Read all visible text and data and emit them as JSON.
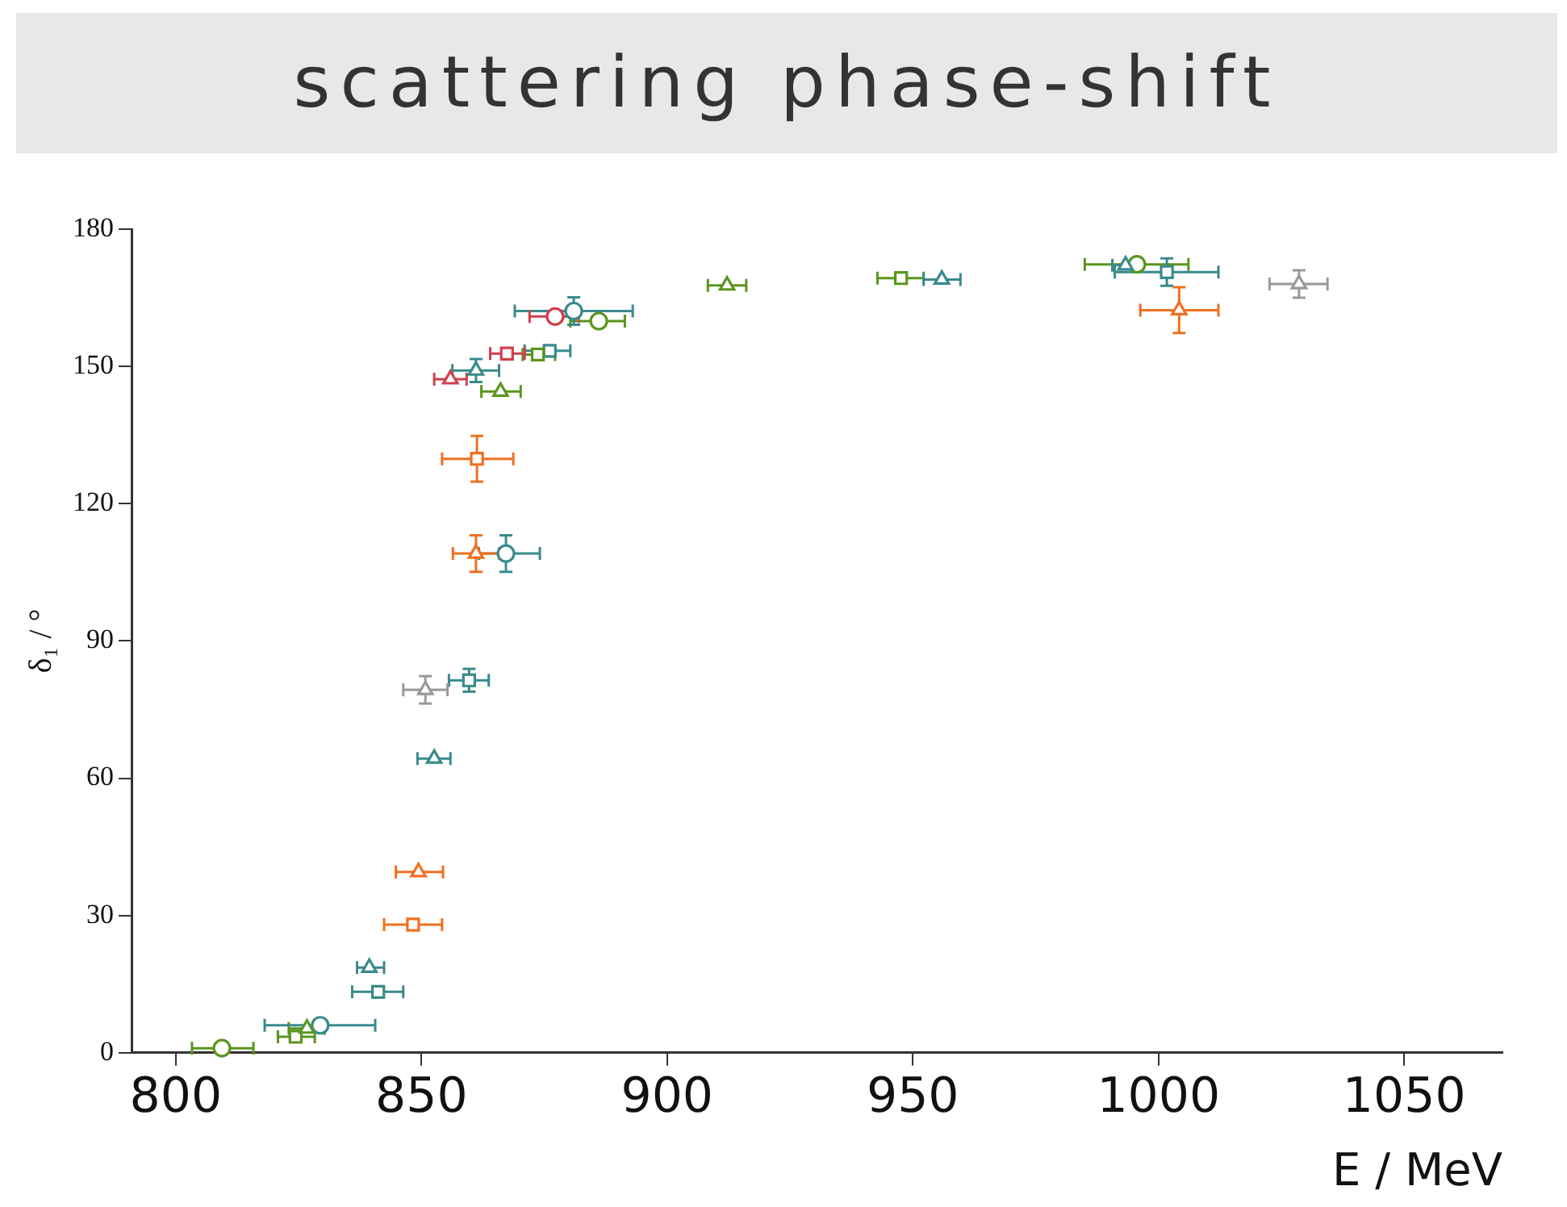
{
  "chart_data": {
    "type": "scatter",
    "title": "scattering phase-shift",
    "xlabel": "E / MeV",
    "ylabel": "δ₁ / °",
    "xlim": [
      791,
      1070
    ],
    "xticks": [
      800,
      850,
      900,
      950,
      1000,
      1050
    ],
    "ylim": [
      0,
      180
    ],
    "yticks": [
      0,
      30,
      60,
      90,
      120,
      150,
      180
    ],
    "grid": false,
    "legend": false,
    "series": [
      {
        "color": "#5a961e",
        "marker": "circle",
        "x": [
          809.4,
          886.1,
          995.6
        ],
        "values": [
          1,
          159.9,
          172.3
        ],
        "xerrors": [
          [
            803.3,
            815.8
          ],
          [
            880.3,
            891.4
          ],
          [
            985,
            1006.1
          ]
        ]
      },
      {
        "color": "#5a961e",
        "marker": "square",
        "x": [
          824.4,
          873.7,
          947.6
        ],
        "values": [
          3.5,
          152.6,
          169.3
        ],
        "xerrors": [
          [
            820.8,
            828.3
          ],
          [
            870.6,
            877.2
          ],
          [
            942.8,
            952.2
          ]
        ]
      },
      {
        "color": "#5a961e",
        "marker": "triangle",
        "x": [
          826.7,
          866.1,
          912.2
        ],
        "values": [
          5.3,
          144.5,
          167.7
        ],
        "xerrors": [
          [
            823,
            830.3
          ],
          [
            862.2,
            870.2
          ],
          [
            908.3,
            916.1
          ]
        ]
      },
      {
        "color": "#3a8a8c",
        "marker": "circle",
        "x": [
          829.4,
          867.2,
          881
        ],
        "values": [
          6,
          109.1,
          162.1
        ],
        "xerrors": [
          [
            818.1,
            840.6
          ],
          [
            861.7,
            874.1
          ],
          [
            869,
            893
          ]
        ],
        "errors": [
          null,
          4,
          3
        ]
      },
      {
        "color": "#3a8a8c",
        "marker": "square",
        "x": [
          841.2,
          859.7,
          876.1,
          1001.7
        ],
        "values": [
          13.3,
          81.4,
          153.4,
          170.6
        ],
        "xerrors": [
          [
            835.9,
            846.3
          ],
          [
            855.6,
            863.7
          ],
          [
            871,
            880.3
          ],
          [
            991.1,
            1012.2
          ]
        ],
        "errors": [
          null,
          2.5,
          null,
          3
        ]
      },
      {
        "color": "#3a8a8c",
        "marker": "triangle",
        "x": [
          839.4,
          852.6,
          861.1,
          955.9,
          993.3
        ],
        "values": [
          18.6,
          64.3,
          149.1,
          169,
          172.1
        ],
        "xerrors": [
          [
            836.9,
            842.4
          ],
          [
            849.2,
            855.9
          ],
          [
            856.3,
            865.8
          ],
          [
            952.2,
            959.7
          ],
          [
            990.6,
            996.7
          ]
        ],
        "errors": [
          null,
          null,
          2.5,
          null,
          null
        ]
      },
      {
        "color": "#f07020",
        "marker": "square",
        "x": [
          848.3,
          861.3
        ],
        "values": [
          28,
          129.8
        ],
        "xerrors": [
          [
            842.4,
            854.2
          ],
          [
            854.2,
            868.7
          ]
        ],
        "errors": [
          null,
          5
        ]
      },
      {
        "color": "#f07020",
        "marker": "triangle",
        "x": [
          849.4,
          861.1,
          1004.2
        ],
        "values": [
          39.5,
          109.1,
          162.3
        ],
        "xerrors": [
          [
            844.8,
            854.4
          ],
          [
            856.4,
            865.8
          ],
          [
            996.3,
            1012.2
          ]
        ],
        "errors": [
          null,
          4,
          5
        ]
      },
      {
        "color": "#d0404e",
        "marker": "circle",
        "x": [
          877.2
        ],
        "values": [
          160.9
        ],
        "xerrors": [
          [
            872,
            882
          ]
        ]
      },
      {
        "color": "#d0404e",
        "marker": "square",
        "x": [
          867.4
        ],
        "values": [
          152.8
        ],
        "xerrors": [
          [
            864,
            871
          ]
        ]
      },
      {
        "color": "#d0404e",
        "marker": "triangle",
        "x": [
          855.9
        ],
        "values": [
          147.2
        ],
        "xerrors": [
          [
            852.6,
            859.2
          ]
        ]
      },
      {
        "color": "#999999",
        "marker": "triangle",
        "x": [
          850.8,
          1028.6
        ],
        "values": [
          79.3,
          168
        ],
        "xerrors": [
          [
            846.3,
            855.3
          ],
          [
            1022.6,
            1034.4
          ]
        ],
        "errors": [
          3,
          3
        ]
      }
    ]
  }
}
